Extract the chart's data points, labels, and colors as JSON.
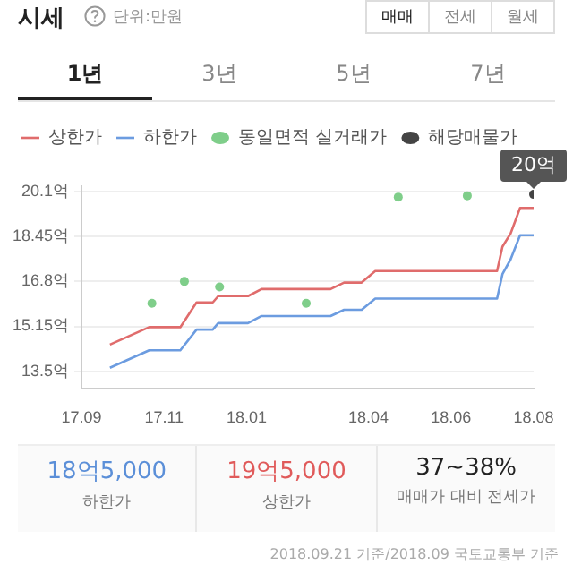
{
  "chart_data": [
    {
      "type": "line",
      "title": "시세",
      "subtitle": "단위:만원",
      "annotations": [
        "매매",
        "전세",
        "월세",
        "1년",
        "3년",
        "5년",
        "7년"
      ],
      "x": [
        "2017-09-22",
        "2017-10-21",
        "2017-11-13",
        "2017-11-25",
        "2017-12-07",
        "2017-12-11",
        "2018-01-02",
        "2018-01-12",
        "2018-03-04",
        "2018-03-14",
        "2018-03-27",
        "2018-04-06",
        "2018-07-05",
        "2018-07-09",
        "2018-07-15",
        "2018-07-22",
        "2018-08-01"
      ],
      "series": [
        {
          "name": "상한가",
          "type": "line",
          "color": "#e06c6c",
          "values": [
            14.48,
            15.12,
            15.12,
            16.03,
            16.03,
            16.26,
            16.26,
            16.52,
            16.52,
            16.76,
            16.76,
            17.18,
            17.18,
            18.08,
            18.56,
            19.5,
            19.5
          ]
        },
        {
          "name": "하한가",
          "type": "line",
          "color": "#6c9ce0",
          "values": [
            13.63,
            14.27,
            14.27,
            15.03,
            15.03,
            15.27,
            15.27,
            15.53,
            15.53,
            15.76,
            15.76,
            16.17,
            16.17,
            17.07,
            17.61,
            18.5,
            18.5
          ]
        },
        {
          "name": "동일면적 실거래가",
          "type": "scatter",
          "color": "#7fce8a",
          "x": [
            "2017-10-23",
            "2017-11-16",
            "2017-12-12",
            "2018-02-14",
            "2018-04-23",
            "2018-06-13"
          ],
          "values": [
            16.0,
            16.8,
            16.6,
            16.0,
            19.9,
            19.95
          ]
        },
        {
          "name": "해당매물가",
          "type": "scatter",
          "color": "#444444",
          "x": [
            "2018-08-01"
          ],
          "values": [
            20.0
          ],
          "value_labels": [
            "20억"
          ]
        }
      ],
      "xlim": [
        "2017-09",
        "2018-08"
      ],
      "xticks": [
        {
          "value": "2017-09",
          "label": "17.09"
        },
        {
          "value": "2017-11",
          "label": "17.11"
        },
        {
          "value": "2018-01",
          "label": "18.01"
        },
        {
          "value": "2018-04",
          "label": "18.04"
        },
        {
          "value": "2018-06",
          "label": "18.06"
        },
        {
          "value": "2018-08",
          "label": "18.08"
        }
      ],
      "ylim": [
        12.85,
        20.3
      ],
      "yticks": [
        {
          "value": 13.5,
          "label": "13.5억"
        },
        {
          "value": 15.15,
          "label": "15.15억"
        },
        {
          "value": 16.8,
          "label": "16.8억"
        },
        {
          "value": 18.45,
          "label": "18.45억"
        },
        {
          "value": 20.1,
          "label": "20.1억"
        }
      ],
      "grid": "y",
      "legend": "top left"
    },
    {
      "type": "other",
      "categories": [
        "18억5,000",
        "19억5,000",
        "37~38%"
      ],
      "annotations": [
        "하한가",
        "상한가",
        "매매가 대비 전세가",
        "2018.09.21 기준/2018.09 국토교통부 기준"
      ]
    }
  ]
}
